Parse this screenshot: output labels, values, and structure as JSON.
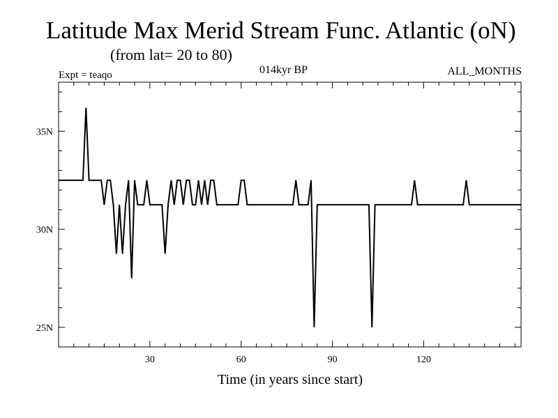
{
  "header": {
    "title": "Latitude Max Merid Stream Func. Atlantic (oN)",
    "subtitle": "(from lat= 20 to 80)",
    "expt": "Expt = teaqo",
    "period": "014kyr BP",
    "months": "ALL_MONTHS"
  },
  "chart_data": {
    "type": "line",
    "title": "Latitude Max Merid Stream Func. Atlantic (oN)",
    "subtitle": "(from lat= 20 to 80)",
    "xlabel": "Time (in years since start)",
    "ylabel": "",
    "xlim": [
      0,
      152
    ],
    "ylim": [
      24,
      37.5
    ],
    "x_ticks": [
      {
        "value": 30,
        "label": "30"
      },
      {
        "value": 60,
        "label": "60"
      },
      {
        "value": 90,
        "label": "90"
      },
      {
        "value": 120,
        "label": "120"
      }
    ],
    "y_ticks": [
      {
        "value": 25,
        "label": "25N"
      },
      {
        "value": 30,
        "label": "30N"
      },
      {
        "value": 35,
        "label": "35N"
      }
    ],
    "grid": false,
    "series": [
      {
        "color": "#000000",
        "x": [
          0,
          8,
          9,
          10,
          14,
          15,
          16,
          17,
          18,
          19,
          20,
          21,
          22,
          23,
          24,
          25,
          26,
          27,
          28,
          29,
          30,
          33,
          34,
          35,
          36,
          37,
          38,
          39,
          40,
          41,
          42,
          43,
          44,
          45,
          46,
          47,
          48,
          49,
          50,
          51,
          52,
          59,
          60,
          61,
          62,
          77,
          78,
          79,
          82,
          83,
          84,
          85,
          86,
          102,
          103,
          104,
          105,
          116,
          117,
          118,
          133,
          134,
          135,
          136,
          152
        ],
        "y": [
          32.5,
          32.5,
          36.2,
          32.5,
          32.5,
          31.25,
          32.5,
          32.5,
          31.25,
          28.75,
          31.25,
          28.75,
          31.25,
          32.5,
          27.5,
          32.5,
          31.25,
          31.25,
          31.25,
          32.5,
          31.25,
          31.25,
          31.25,
          28.75,
          31.25,
          32.5,
          31.25,
          32.5,
          32.5,
          31.25,
          32.5,
          32.5,
          31.25,
          31.25,
          32.5,
          31.25,
          32.5,
          31.25,
          32.5,
          32.5,
          31.25,
          31.25,
          32.5,
          32.5,
          31.25,
          31.25,
          32.5,
          31.25,
          31.25,
          32.5,
          25.0,
          31.25,
          31.25,
          31.25,
          25.0,
          31.25,
          31.25,
          31.25,
          32.5,
          31.25,
          31.25,
          32.5,
          31.25,
          31.25,
          31.25
        ]
      }
    ]
  }
}
